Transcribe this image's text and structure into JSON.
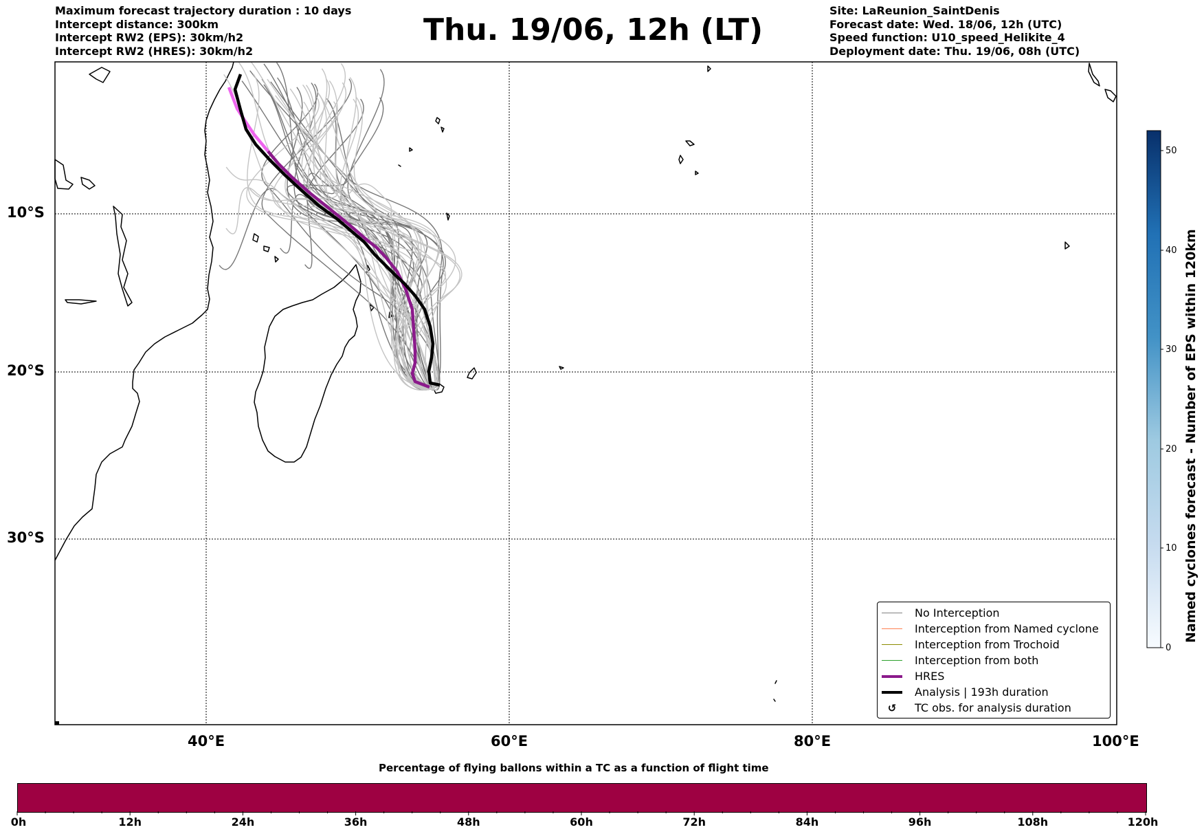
{
  "header": {
    "left": [
      "Maximum forecast trajectory duration : 10 days",
      "Intercept distance: 300km",
      "Intercept RW2 (EPS):  30km/h2",
      "Intercept RW2 (HRES): 30km/h2"
    ],
    "title": "Thu. 19/06, 12h (LT)",
    "right": [
      "Site: LaReunion_SaintDenis",
      "Forecast date: Wed. 18/06, 12h (UTC)",
      "Speed function: U10_speed_Helikite_4",
      "Deployment date: Thu. 19/06, 08h (UTC)"
    ]
  },
  "map": {
    "lat_labels": [
      "10°S",
      "20°S",
      "30°S"
    ],
    "lon_labels": [
      "40°E",
      "60°E",
      "80°E",
      "100°E"
    ],
    "lat_values": [
      -10,
      -20,
      -30
    ],
    "lon_values": [
      40,
      60,
      80,
      100
    ],
    "site": "LaReunion_SaintDenis"
  },
  "legend": [
    {
      "label": "No Interception",
      "color": "#808080",
      "style": "thin"
    },
    {
      "label": "Interception from Named cyclone",
      "color": "#ff7f50",
      "style": "thin"
    },
    {
      "label": "Interception from Trochoid",
      "color": "#8b8b00",
      "style": "thin"
    },
    {
      "label": "Interception from both",
      "color": "#2ca02c",
      "style": "thin"
    },
    {
      "label": "HRES",
      "color": "#8b1a8b",
      "style": "thick"
    },
    {
      "label": "Analysis | 193h duration",
      "color": "#000000",
      "style": "thick"
    },
    {
      "label": "TC obs. for analysis duration",
      "symbol": "↺",
      "style": "symbol"
    }
  ],
  "colorbar": {
    "label": "Named cyclones forecast - Number of EPS within 120km",
    "ticks": [
      "0",
      "10",
      "20",
      "30",
      "40",
      "50"
    ],
    "min": 0,
    "max": 52
  },
  "flight_bar": {
    "title": "Percentage of flying ballons within a TC as a function of flight time",
    "color": "#9e0142",
    "ticks": [
      "0h",
      "12h",
      "24h",
      "36h",
      "48h",
      "60h",
      "72h",
      "84h",
      "96h",
      "108h",
      "120h"
    ]
  }
}
